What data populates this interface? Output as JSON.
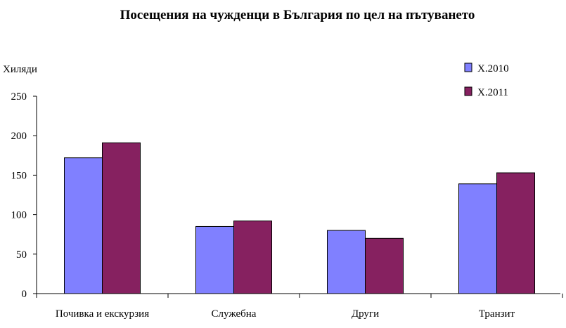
{
  "chart_data": {
    "type": "bar",
    "title": "Посещения на чужденци в България по цел на пътуването",
    "ylabel": "Хиляди",
    "xlabel": "",
    "categories": [
      "Почивка и екскурзия",
      "Служебна",
      "Други",
      "Транзит"
    ],
    "series": [
      {
        "name": "X.2010",
        "values": [
          172,
          85,
          80,
          139
        ],
        "color": "#8080ff"
      },
      {
        "name": "X.2011",
        "values": [
          191,
          92,
          70,
          153
        ],
        "color": "#862160"
      }
    ],
    "ylim": [
      0,
      250
    ],
    "yticks": [
      "0",
      "50",
      "100",
      "150",
      "200",
      "250"
    ],
    "grid": false,
    "legend_position": "top-right"
  }
}
